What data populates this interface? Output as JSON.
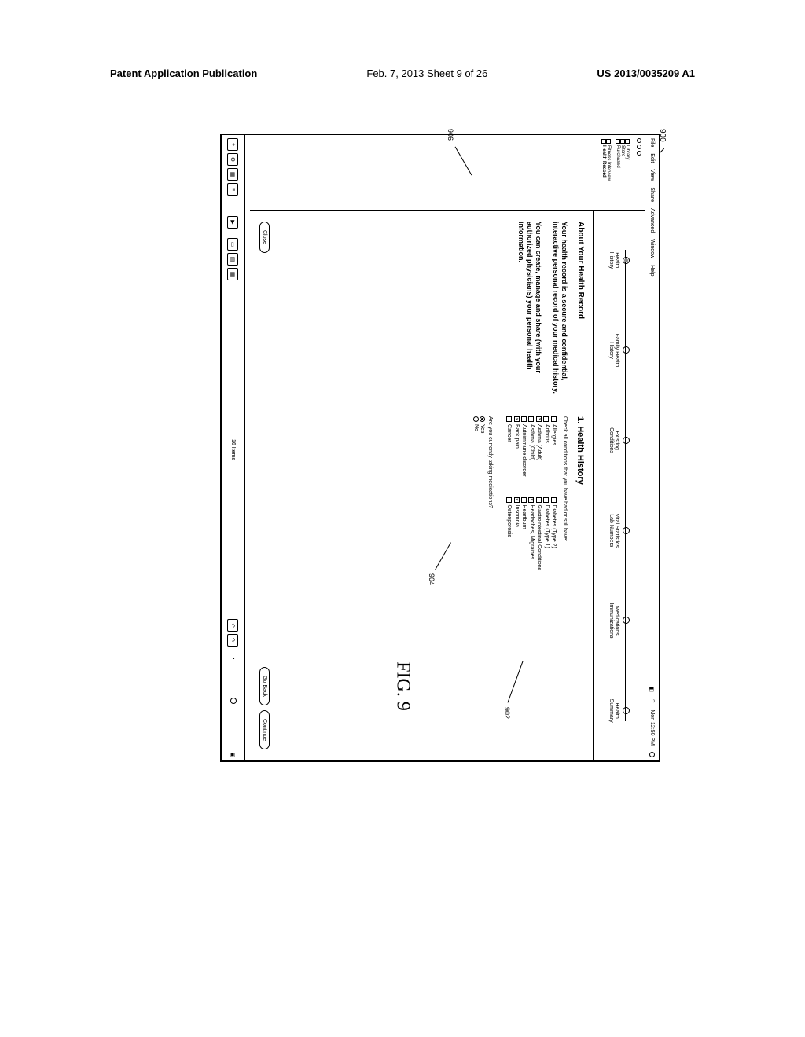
{
  "page_header": {
    "left": "Patent Application Publication",
    "center": "Feb. 7, 2013  Sheet 9 of 26",
    "right": "US 2013/0035209 A1"
  },
  "figure_ref": "900",
  "figure_label": "FIG. 9",
  "callouts": {
    "c902": "902",
    "c904": "904",
    "c906": "906"
  },
  "menubar": {
    "items": [
      "File",
      "Edit",
      "View",
      "Share",
      "Advanced",
      "Window",
      "Help"
    ],
    "status_right": "Mon 12:50 PM",
    "battery_icon": "◧",
    "wifi_icon": "⌔"
  },
  "sidebar": {
    "groups": [
      {
        "items": [
          {
            "label": "Library"
          },
          {
            "label": "Store"
          },
          {
            "label": "Purchased"
          }
        ]
      },
      {
        "items": [
          {
            "label": "Fitness Interview"
          },
          {
            "label": "Health Record",
            "bold": true
          }
        ]
      }
    ]
  },
  "steps": [
    {
      "label": "Health\nHistory",
      "filled": true
    },
    {
      "label": "Family Health\nHistory"
    },
    {
      "label": "Existing\nConditions"
    },
    {
      "label": "Vital Statistics\nLab Numbers"
    },
    {
      "label": "Medications\nImmunizations"
    },
    {
      "label": "Health\nSummary"
    }
  ],
  "about": {
    "title": "About Your Health Record",
    "p1": "Your health record is a secure and confidential, interactive personal record of your medical history.",
    "p2": "You can create, manage and share (with your authorized physicians) your personal health information."
  },
  "form": {
    "title": "1. Health History",
    "hint": "Check all conditions that you have had or still have:",
    "col1": [
      {
        "label": "Allergies",
        "checked": false
      },
      {
        "label": "Arthritis",
        "checked": false
      },
      {
        "label": "Asthma (Adult)",
        "checked": true
      },
      {
        "label": "Asthma (Child)",
        "checked": false
      },
      {
        "label": "Autoimmune disorder",
        "checked": false
      },
      {
        "label": "Back pain",
        "checked": true
      },
      {
        "label": "Cancer",
        "checked": false
      }
    ],
    "col2": [
      {
        "label": "Diabetes (Type 2)",
        "checked": false
      },
      {
        "label": "Diabetes (Type 1)",
        "checked": false
      },
      {
        "label": "Gastrointestinal Conditions",
        "checked": false
      },
      {
        "label": "Headaches, Migraines",
        "checked": true
      },
      {
        "label": "Heartburn",
        "checked": false
      },
      {
        "label": "Insomnia",
        "checked": true
      },
      {
        "label": "Osteoporosis",
        "checked": false
      }
    ],
    "q2": "Are you currently taking medications?",
    "radios": [
      {
        "label": "Yes",
        "selected": true
      },
      {
        "label": "No",
        "selected": false
      }
    ]
  },
  "buttons": {
    "close": "Close",
    "goback": "Go Back",
    "continue": "Continue"
  },
  "statusbar": {
    "count": "16 Items"
  }
}
